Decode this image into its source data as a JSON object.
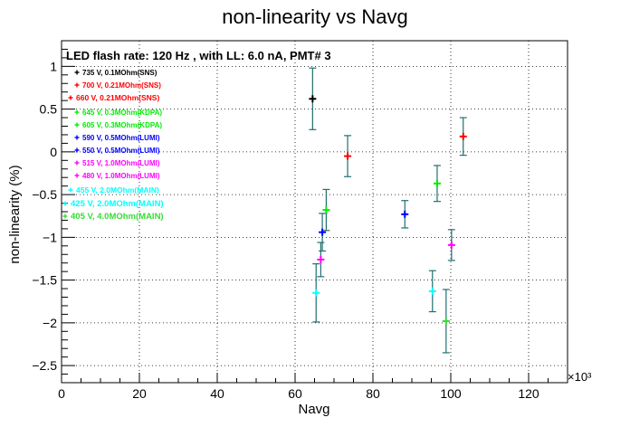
{
  "chart_data": {
    "type": "scatter",
    "title": "non-linearity vs Navg",
    "subtitle": "LED flash rate: 120 Hz , with LL: 6.0 nA, PMT# 3",
    "xlabel": "Navg",
    "ylabel": "non-linearity (%)",
    "x_multiplier": "×10³",
    "xlim": [
      0,
      130
    ],
    "ylim": [
      -2.7,
      1.3
    ],
    "x_ticks": [
      0,
      20,
      40,
      60,
      80,
      100,
      120
    ],
    "y_ticks": [
      1,
      0.5,
      0,
      -0.5,
      -1,
      -1.5,
      -2,
      -2.5
    ],
    "y_tick_labels": [
      "1",
      "0.5",
      "0",
      "−0.5",
      "−1",
      "−1.5",
      "−2",
      "−2.5"
    ],
    "grid": true,
    "legend_position": "top-left",
    "error_bar_color": "#1f6f6f",
    "series": [
      {
        "name": "735 V, 0.1MOhm(SNS)",
        "color": "#000000",
        "x": 64.5,
        "y": 0.62,
        "err": 0.36
      },
      {
        "name": "700 V, 0.21MOhm(SNS)",
        "color": "#ff0000",
        "x": 103.2,
        "y": 0.18,
        "err": 0.22
      },
      {
        "name": "660 V, 0.21MOhm(SNS)",
        "color": "#ff0000",
        "x": 73.5,
        "y": -0.05,
        "err": 0.24
      },
      {
        "name": "645 V, 0.3MOhm(KDPA)",
        "color": "#00ee00",
        "x": 96.5,
        "y": -0.37,
        "err": 0.21
      },
      {
        "name": "605 V, 0.3MOhm(KDPA)",
        "color": "#00ee00",
        "x": 68.0,
        "y": -0.68,
        "err": 0.24
      },
      {
        "name": "590 V, 0.5MOhm(LUMI)",
        "color": "#0000ff",
        "x": 88.2,
        "y": -0.73,
        "err": 0.16
      },
      {
        "name": "550 V, 0.5MOhm(LUMI)",
        "color": "#0000ff",
        "x": 67.0,
        "y": -0.94,
        "err": 0.22
      },
      {
        "name": "515 V, 1.0MOhm(LUMI)",
        "color": "#ff00ff",
        "x": 100.2,
        "y": -1.09,
        "err": 0.18
      },
      {
        "name": "480 V, 1.0MOhm(LUMI)",
        "color": "#ff00ff",
        "x": 66.6,
        "y": -1.26,
        "err": 0.2
      },
      {
        "name": "455 V, 2.0MOhm(MAIN)",
        "color": "#00ffff",
        "x": 95.3,
        "y": -1.63,
        "err": 0.24
      },
      {
        "name": "425 V, 2.0MOhm(MAIN)",
        "color": "#00ffff",
        "x": 65.4,
        "y": -1.65,
        "err": 0.34
      },
      {
        "name": "405 V, 4.0MOhm(MAIN)",
        "color": "#33dd33",
        "x": 98.8,
        "y": -1.98,
        "err": 0.37
      }
    ]
  }
}
